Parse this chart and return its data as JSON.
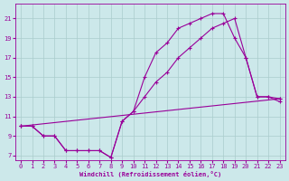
{
  "xlabel": "Windchill (Refroidissement éolien,°C)",
  "bg_color": "#cce8ea",
  "line_color": "#990099",
  "grid_color": "#aacccc",
  "xlim": [
    -0.5,
    23.5
  ],
  "ylim": [
    6.5,
    22.5
  ],
  "xticks": [
    0,
    1,
    2,
    3,
    4,
    5,
    6,
    7,
    8,
    9,
    10,
    11,
    12,
    13,
    14,
    15,
    16,
    17,
    18,
    19,
    20,
    21,
    22,
    23
  ],
  "yticks": [
    7,
    9,
    11,
    13,
    15,
    17,
    19,
    21
  ],
  "line1_x": [
    0,
    1,
    2,
    3,
    4,
    5,
    6,
    7,
    8,
    9,
    10,
    11,
    12,
    13,
    14,
    15,
    16,
    17,
    18,
    19,
    20,
    21,
    22,
    23
  ],
  "line1_y": [
    10.0,
    10.0,
    9.0,
    9.0,
    7.5,
    7.5,
    7.5,
    7.5,
    6.8,
    10.5,
    11.5,
    15.0,
    17.5,
    18.5,
    20.0,
    20.5,
    21.0,
    21.5,
    21.5,
    19.0,
    17.0,
    13.0,
    13.0,
    12.8
  ],
  "line2_x": [
    0,
    1,
    2,
    3,
    4,
    5,
    6,
    7,
    8,
    9,
    10,
    11,
    12,
    13,
    14,
    15,
    16,
    17,
    18,
    19,
    20,
    21,
    22,
    23
  ],
  "line2_y": [
    10.0,
    10.0,
    9.0,
    9.0,
    7.5,
    7.5,
    7.5,
    7.5,
    6.8,
    10.5,
    11.5,
    13.0,
    14.5,
    15.5,
    17.0,
    18.0,
    19.0,
    20.0,
    20.5,
    21.0,
    17.0,
    13.0,
    13.0,
    12.5
  ],
  "line3_x": [
    0,
    23
  ],
  "line3_y": [
    10.0,
    12.8
  ]
}
